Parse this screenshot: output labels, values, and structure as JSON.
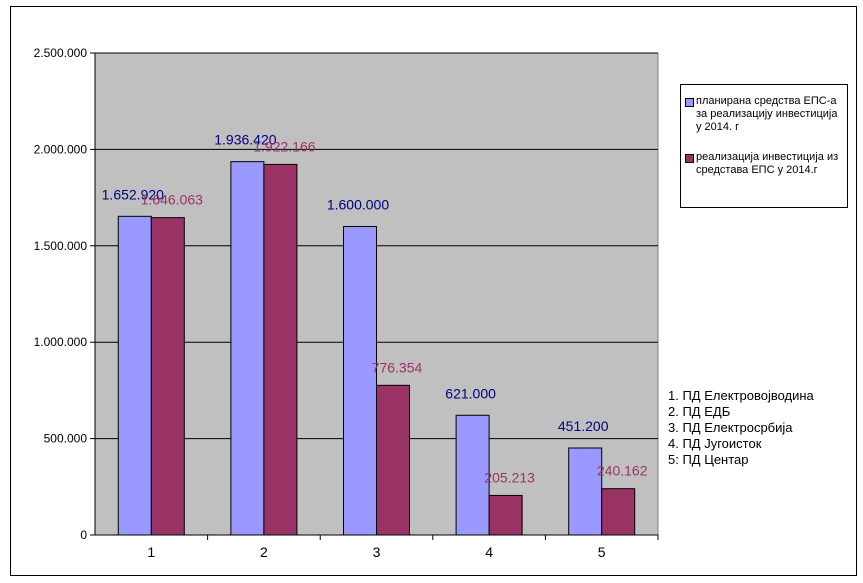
{
  "chart_data": {
    "type": "bar",
    "categories": [
      "1",
      "2",
      "3",
      "4",
      "5"
    ],
    "series": [
      {
        "name": "планирана средства ЕПС-а за реализацију инвестиција у 2014. г",
        "values": [
          1652920,
          1936420,
          1600000,
          621000,
          451200
        ],
        "labels": [
          "1.652.920",
          "1.936.420",
          "1.600.000",
          "621.000",
          "451.200"
        ],
        "color": "#9999ff",
        "label_color": "#000080"
      },
      {
        "name": "реализација инвестиција из средстава ЕПС у 2014.г",
        "values": [
          1646063,
          1922166,
          776354,
          205213,
          240162
        ],
        "labels": [
          "1.646.063",
          "1.922.166",
          "776.354",
          "205.213",
          "240.162"
        ],
        "color": "#993366",
        "label_color": "#993366"
      }
    ],
    "yticks": [
      {
        "value": 0,
        "label": "0"
      },
      {
        "value": 500000,
        "label": "500.000"
      },
      {
        "value": 1000000,
        "label": "1.000.000"
      },
      {
        "value": 1500000,
        "label": "1.500.000"
      },
      {
        "value": 2000000,
        "label": "2.000.000"
      },
      {
        "value": 2500000,
        "label": "2.500.000"
      }
    ],
    "ylim": [
      0,
      2500000
    ],
    "grid": true,
    "plot_background": "#c0c0c0",
    "legend_position": "right",
    "title": "",
    "xlabel": "",
    "ylabel": ""
  },
  "notes": [
    "1. ПД Електровојводина",
    "2. ПД ЕДБ",
    "3. ПД Електросрбија",
    "4. ПД Југоисток",
    "5: ПД Центар"
  ]
}
